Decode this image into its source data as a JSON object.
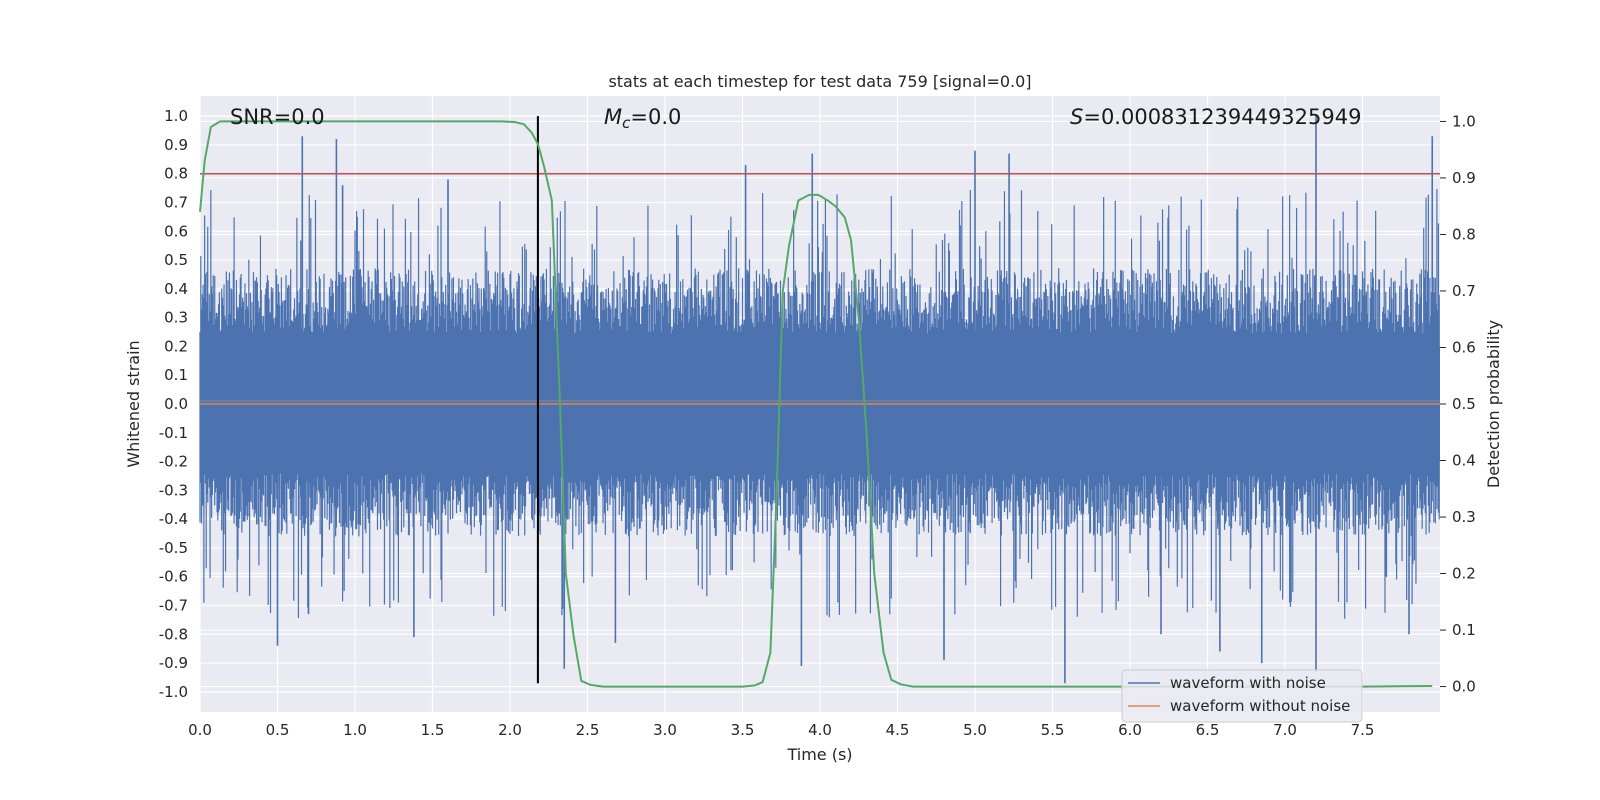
{
  "chart_data": {
    "type": "line",
    "title": "stats at each timestep for test data 759 [signal=0.0]",
    "xlabel": "Time (s)",
    "ylabel_left": "Whitened strain",
    "ylabel_right": "Detection probability",
    "xlim": [
      0.0,
      8.0
    ],
    "ylim_left": [
      -1.07,
      1.07
    ],
    "ylim_right": [
      -0.045,
      1.045
    ],
    "x_ticks": [
      "0.0",
      "0.5",
      "1.0",
      "1.5",
      "2.0",
      "2.5",
      "3.0",
      "3.5",
      "4.0",
      "4.5",
      "5.0",
      "5.5",
      "6.0",
      "6.5",
      "7.0",
      "7.5"
    ],
    "y_ticks_left": [
      "1.0",
      "0.9",
      "0.8",
      "0.7",
      "0.6",
      "0.5",
      "0.4",
      "0.3",
      "0.2",
      "0.1",
      "0.0",
      "-0.1",
      "-0.2",
      "-0.3",
      "-0.4",
      "-0.5",
      "-0.6",
      "-0.7",
      "-0.8",
      "-0.9",
      "-1.0"
    ],
    "y_ticks_right": [
      "1.0",
      "0.9",
      "0.8",
      "0.7",
      "0.6",
      "0.5",
      "0.4",
      "0.3",
      "0.2",
      "0.1",
      "0.0"
    ],
    "grid": true,
    "annotations": {
      "snr": "SNR=0.0",
      "mc_symbol": "M",
      "mc_subscript": "c",
      "mc_value": "=0.0",
      "s_symbol": "S",
      "s_value": "=0.000831239449325949"
    },
    "threshold": {
      "value": 0.8,
      "axis": "left",
      "color": "#c44e52"
    },
    "marker_time": 2.18,
    "series": [
      {
        "name": "waveform with noise",
        "axis": "left",
        "color": "#4c72b0",
        "style": "noise",
        "typical_range": [
          -0.4,
          0.41
        ],
        "peak_events": [
          {
            "t": 0.66,
            "v": 0.93
          },
          {
            "t": 0.88,
            "v": 0.92
          },
          {
            "t": 0.92,
            "v": 0.76
          },
          {
            "t": 1.6,
            "v": 0.78
          },
          {
            "t": 2.18,
            "v": 0.78
          },
          {
            "t": 3.52,
            "v": 0.83
          },
          {
            "t": 3.95,
            "v": 0.87
          },
          {
            "t": 5.0,
            "v": 0.88
          },
          {
            "t": 5.22,
            "v": 0.87
          },
          {
            "t": 7.2,
            "v": 1.0
          },
          {
            "t": 7.95,
            "v": 0.93
          },
          {
            "t": 0.5,
            "v": -0.84
          },
          {
            "t": 0.7,
            "v": -0.73
          },
          {
            "t": 1.38,
            "v": -0.81
          },
          {
            "t": 2.35,
            "v": -0.92
          },
          {
            "t": 2.68,
            "v": -0.83
          },
          {
            "t": 3.88,
            "v": -0.91
          },
          {
            "t": 4.8,
            "v": -0.89
          },
          {
            "t": 5.58,
            "v": -0.97
          },
          {
            "t": 6.2,
            "v": -0.8
          },
          {
            "t": 6.58,
            "v": -0.86
          },
          {
            "t": 6.85,
            "v": -0.9
          },
          {
            "t": 7.2,
            "v": -0.93
          },
          {
            "t": 7.8,
            "v": -0.8
          }
        ]
      },
      {
        "name": "waveform without noise",
        "axis": "left",
        "color": "#dd8452",
        "values_x": [
          0.0,
          8.0
        ],
        "values_y": [
          0.0,
          0.0
        ]
      },
      {
        "name": "detection probability",
        "axis": "right",
        "color": "#55a868",
        "in_legend": false,
        "x": [
          0.0,
          0.03,
          0.07,
          0.13,
          0.2,
          0.3,
          1.0,
          1.5,
          1.95,
          2.03,
          2.09,
          2.14,
          2.18,
          2.22,
          2.27,
          2.32,
          2.36,
          2.41,
          2.46,
          2.52,
          2.6,
          3.0,
          3.5,
          3.58,
          3.63,
          3.68,
          3.72,
          3.76,
          3.8,
          3.86,
          3.93,
          3.99,
          4.05,
          4.1,
          4.16,
          4.2,
          4.25,
          4.3,
          4.35,
          4.41,
          4.46,
          4.52,
          4.6,
          5.0,
          6.0,
          7.0,
          7.5,
          7.95
        ],
        "y": [
          0.84,
          0.93,
          0.99,
          1.0,
          1.0,
          1.0,
          1.0,
          1.0,
          1.0,
          0.999,
          0.995,
          0.98,
          0.96,
          0.92,
          0.86,
          0.52,
          0.2,
          0.09,
          0.01,
          0.003,
          0.0,
          0.0,
          0.0,
          0.002,
          0.008,
          0.06,
          0.34,
          0.7,
          0.78,
          0.86,
          0.87,
          0.87,
          0.86,
          0.85,
          0.83,
          0.79,
          0.65,
          0.45,
          0.2,
          0.06,
          0.012,
          0.004,
          0.0,
          0.0,
          0.0,
          0.0,
          0.0,
          0.001
        ]
      }
    ],
    "legend": {
      "position": "lower-right",
      "entries": [
        {
          "label": "waveform with noise",
          "color": "#4c72b0"
        },
        {
          "label": "waveform without noise",
          "color": "#dd8452"
        }
      ]
    }
  }
}
